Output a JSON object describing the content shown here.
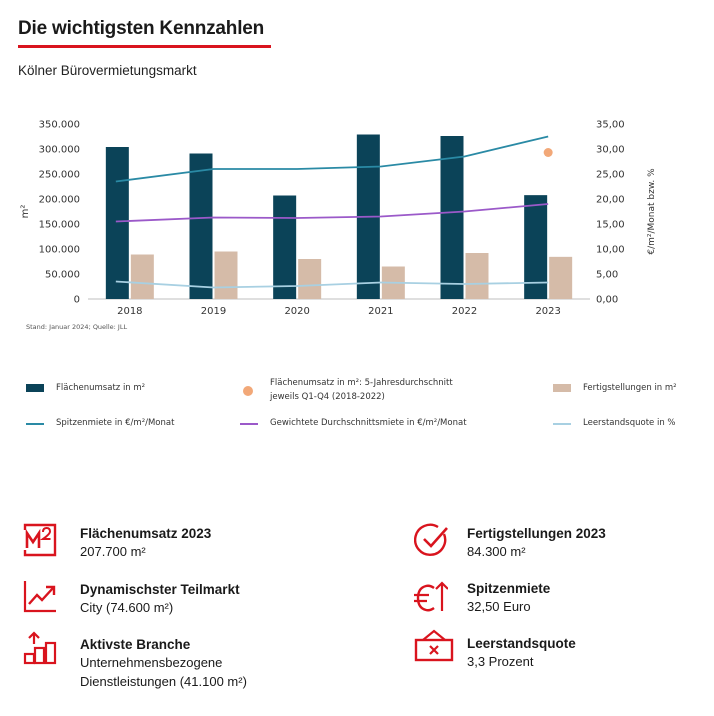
{
  "header": {
    "title": "Die wichtigsten Kennzahlen",
    "subtitle": "Kölner Bürovermietungsmarkt"
  },
  "chart_data": {
    "type": "bar",
    "categories": [
      "2018",
      "2019",
      "2020",
      "2021",
      "2022",
      "2023"
    ],
    "ylabel_left": "m²",
    "ylabel_right": "€/m²/Monat bzw. %",
    "ylim_left": [
      0,
      350000
    ],
    "ylim_right": [
      0,
      35
    ],
    "yticks_left": [
      "0",
      "50.000",
      "100.000",
      "150.000",
      "200.000",
      "250.000",
      "300.000",
      "350.000"
    ],
    "yticks_right": [
      "0,00",
      "5,00",
      "10,00",
      "15,00",
      "20,00",
      "25,00",
      "30,00",
      "35,00"
    ],
    "grid": false,
    "source_note": "Stand: Januar 2024; Quelle: JLL",
    "series": [
      {
        "name": "Flächenumsatz in m²",
        "kind": "bar",
        "axis": "left",
        "color": "#0b4358",
        "values": [
          304000,
          291000,
          207000,
          329000,
          326000,
          207700
        ]
      },
      {
        "name": "Fertigstellungen in m²",
        "kind": "bar",
        "axis": "left",
        "color": "#d5bba8",
        "values": [
          89000,
          95000,
          80000,
          65000,
          92000,
          84300
        ]
      },
      {
        "name": "Spitzenmiete in €/m²/Monat",
        "kind": "line",
        "axis": "right",
        "color": "#2a8aa5",
        "values": [
          23.5,
          26.0,
          26.0,
          26.5,
          28.5,
          32.5
        ]
      },
      {
        "name": "Gewichtete Durchschnittsmiete in €/m²/Monat",
        "kind": "line",
        "axis": "right",
        "color": "#9b59c9",
        "values": [
          15.5,
          16.3,
          16.2,
          16.5,
          17.5,
          19.0
        ]
      },
      {
        "name": "Leerstandsquote in %",
        "kind": "line",
        "axis": "right",
        "color": "#a8d0e2",
        "values": [
          3.5,
          2.3,
          2.6,
          3.3,
          3.0,
          3.3
        ]
      },
      {
        "name": "Flächenumsatz in m²: 5-Jahresdurchschnitt jeweils Q1-Q4 (2018-2022)",
        "kind": "point",
        "axis": "right",
        "color": "#f2a878",
        "x": "2023",
        "value": 29.3
      }
    ]
  },
  "legend": {
    "flaechenumsatz": "Flächenumsatz in m²",
    "durchschnitt_line1": "Flächenumsatz in m²: 5-Jahresdurchschnitt",
    "durchschnitt_line2": "jeweils Q1-Q4 (2018-2022)",
    "fertigstellungen": "Fertigstellungen in m²",
    "spitzenmiete": "Spitzenmiete in €/m²/Monat",
    "durchschnittsmiete": "Gewichtete Durchschnittsmiete in €/m²/Monat",
    "leerstandsquote": "Leerstandsquote in %"
  },
  "kpis": {
    "flaechenumsatz": {
      "title": "Flächenumsatz 2023",
      "value": "207.700 m²",
      "icon": "m2-icon"
    },
    "fertigstellungen": {
      "title": "Fertigstellungen 2023",
      "value": "84.300 m²",
      "icon": "checkmark-icon"
    },
    "teilmarkt": {
      "title": "Dynamischster Teilmarkt",
      "value": "City (74.600 m²)",
      "icon": "trend-chart-icon"
    },
    "spitzenmiete": {
      "title": "Spitzenmiete",
      "value": "32,50 Euro",
      "icon": "euro-up-icon"
    },
    "branche": {
      "title": "Aktivste Branche",
      "value_line1": "Unternehmensbezogene",
      "value_line2": "Dienstleistungen (41.100 m²)",
      "icon": "bars-arrow-icon"
    },
    "leerstand": {
      "title": "Leerstandsquote",
      "value": "3,3 Prozent",
      "icon": "vacancy-sign-icon"
    }
  },
  "colors": {
    "accent_red": "#d9141e",
    "dark_teal": "#0b4358",
    "beige": "#d5bba8"
  }
}
